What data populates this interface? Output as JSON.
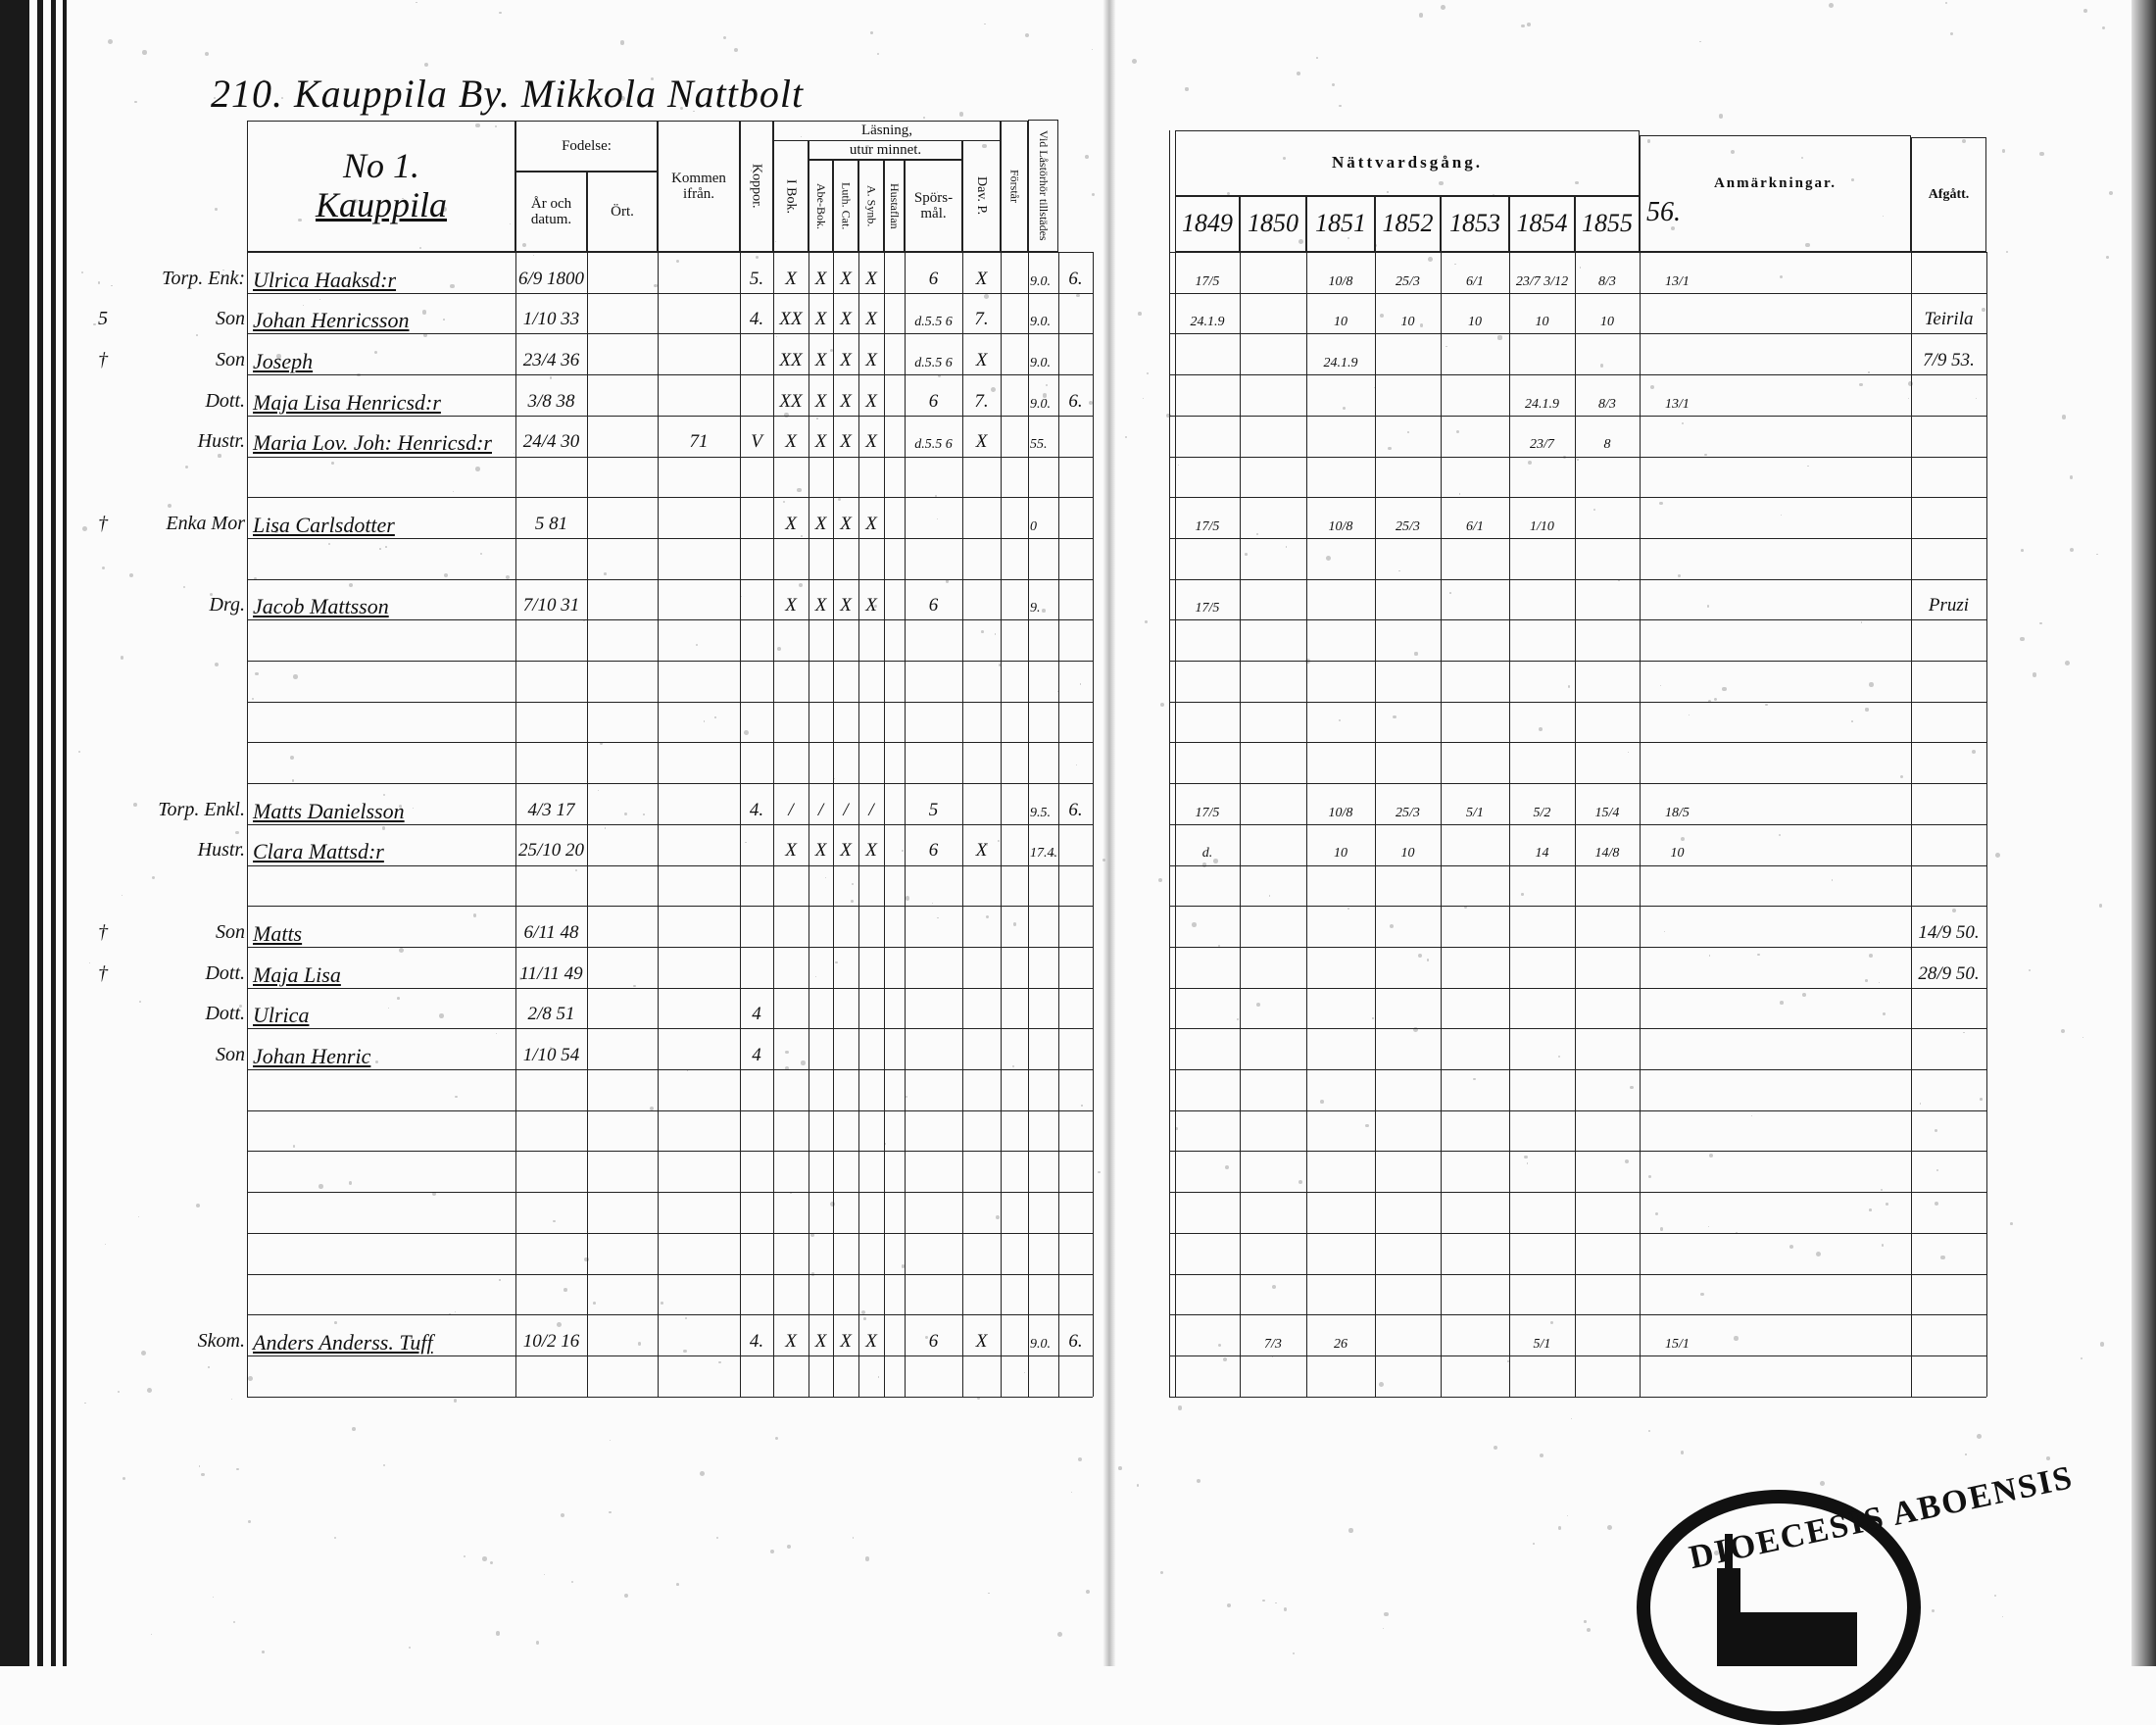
{
  "page": {
    "number": "210.",
    "title": "Kauppila By. Mikkola Nattbolt",
    "household_no": "No 1.",
    "household_name": "Kauppila"
  },
  "left_headers": {
    "fodelse": "Fodelse:",
    "ar_och_datum": "År och datum.",
    "ort": "Ört.",
    "kommen_ifran": "Kommen ifrån.",
    "koppor": "Koppor.",
    "lasning": "Läsning,",
    "utur_minnet": "utur minnet.",
    "i_bok": "I Bok.",
    "abe_bok": "Abe-Bok.",
    "luth_cat": "Luth. Cat.",
    "synb": "A. Synb.",
    "hustaflan": "Hustaflan",
    "sporsmal": "Spörs-mål.",
    "dav_p": "Dav. P.",
    "forstar": "Förstår",
    "vid_lastorhor": "Vid Låstörhör tillstädes"
  },
  "right_headers": {
    "nattvardsgang": "Nättvardsgång.",
    "years": [
      "1849",
      "1850",
      "1851",
      "1852",
      "1853",
      "1854",
      "1855"
    ],
    "anmarkningar": "Anmärkningar.",
    "year_56": "56.",
    "afgatt": "Afgått."
  },
  "rows": [
    {
      "row": 0,
      "margin": "",
      "role": "Torp. Enk:",
      "name": "Ulrica Haaksd:r",
      "birth": "6/9 1800",
      "kommen": "",
      "koppor": "5.",
      "ibok": "X",
      "abe": "X",
      "luth": "X",
      "synb": "X",
      "hust": "",
      "spors": "6",
      "dav": "X",
      "fyr": "",
      "vid": "9.0.",
      "extra": "6.",
      "y1849": "17/5",
      "y1850": "",
      "y1851": "10/8",
      "y1852": "25/3",
      "y1853": "6/1",
      "y1854": "23/7 3/12",
      "y1855": "8/3",
      "y56": "13/1",
      "afgatt": ""
    },
    {
      "row": 1,
      "margin": "5",
      "role": "Son",
      "name": "Johan Henricsson",
      "birth": "1/10 33",
      "kommen": "",
      "koppor": "4.",
      "ibok": "XX",
      "abe": "X",
      "luth": "X",
      "synb": "X",
      "hust": "",
      "spors": "d.5.5 6",
      "dav": "7.",
      "fyr": "",
      "vid": "9.0.",
      "extra": "",
      "y1849": "24.1.9",
      "y1850": "",
      "y1851": "10",
      "y1852": "10",
      "y1853": "10",
      "y1854": "10",
      "y1855": "10",
      "y56": "",
      "afgatt": "Teirila"
    },
    {
      "row": 2,
      "margin": "†",
      "role": "Son",
      "name": "Joseph",
      "birth": "23/4 36",
      "kommen": "",
      "koppor": "",
      "ibok": "XX",
      "abe": "X",
      "luth": "X",
      "synb": "X",
      "hust": "",
      "spors": "d.5.5 6",
      "dav": "X",
      "fyr": "",
      "vid": "9.0.",
      "extra": "",
      "y1849": "",
      "y1850": "",
      "y1851": "24.1.9",
      "y1852": "",
      "y1853": "",
      "y1854": "",
      "y1855": "",
      "y56": "",
      "afgatt": "7/9 53."
    },
    {
      "row": 3,
      "margin": "",
      "role": "Dott.",
      "name": "Maja Lisa Henricsd:r",
      "birth": "3/8 38",
      "kommen": "",
      "koppor": "",
      "ibok": "XX",
      "abe": "X",
      "luth": "X",
      "synb": "X",
      "hust": "",
      "spors": "6",
      "dav": "7.",
      "fyr": "",
      "vid": "9.0.",
      "extra": "6.",
      "y1849": "",
      "y1850": "",
      "y1851": "",
      "y1852": "",
      "y1853": "",
      "y1854": "24.1.9",
      "y1855": "8/3",
      "y56": "13/1",
      "afgatt": ""
    },
    {
      "row": 4,
      "margin": "",
      "role": "Hustr.",
      "name": "Maria Lov. Joh: Henricsd:r",
      "birth": "24/4 30",
      "kommen": "71",
      "koppor": "V",
      "ibok": "X",
      "abe": "X",
      "luth": "X",
      "synb": "X",
      "hust": "",
      "spors": "d.5.5 6",
      "dav": "X",
      "fyr": "",
      "vid": "55.",
      "extra": "",
      "y1849": "",
      "y1850": "",
      "y1851": "",
      "y1852": "",
      "y1853": "",
      "y1854": "23/7",
      "y1855": "8",
      "y56": "",
      "afgatt": ""
    },
    {
      "row": 6,
      "margin": "†",
      "role": "Enka Mor",
      "name": "Lisa Carlsdotter",
      "birth": "5 81",
      "kommen": "",
      "koppor": "",
      "ibok": "X",
      "abe": "X",
      "luth": "X",
      "synb": "X",
      "hust": "",
      "spors": "",
      "dav": "",
      "fyr": "",
      "vid": "0",
      "extra": "",
      "y1849": "17/5",
      "y1850": "",
      "y1851": "10/8",
      "y1852": "25/3",
      "y1853": "6/1",
      "y1854": "1/10",
      "y1855": "",
      "y56": "",
      "afgatt": ""
    },
    {
      "row": 8,
      "margin": "",
      "role": "Drg.",
      "name": "Jacob Mattsson",
      "birth": "7/10 31",
      "kommen": "",
      "koppor": "",
      "ibok": "X",
      "abe": "X",
      "luth": "X",
      "synb": "X",
      "hust": "",
      "spors": "6",
      "dav": "",
      "fyr": "",
      "vid": "9.",
      "extra": "",
      "y1849": "17/5",
      "y1850": "",
      "y1851": "",
      "y1852": "",
      "y1853": "",
      "y1854": "",
      "y1855": "",
      "y56": "",
      "afgatt": "Pruzi"
    },
    {
      "row": 13,
      "margin": "",
      "role": "Torp. Enkl.",
      "name": "Matts Danielsson",
      "birth": "4/3 17",
      "kommen": "",
      "koppor": "4.",
      "ibok": "/",
      "abe": "/",
      "luth": "/",
      "synb": "/",
      "hust": "",
      "spors": "5",
      "dav": "",
      "fyr": "",
      "vid": "9.5.",
      "extra": "6.",
      "y1849": "17/5",
      "y1850": "",
      "y1851": "10/8",
      "y1852": "25/3",
      "y1853": "5/1",
      "y1854": "5/2",
      "y1855": "15/4",
      "y56": "18/5",
      "afgatt": ""
    },
    {
      "row": 14,
      "margin": "",
      "role": "Hustr.",
      "name": "Clara Mattsd:r",
      "birth": "25/10 20",
      "kommen": "",
      "koppor": "",
      "ibok": "X",
      "abe": "X",
      "luth": "X",
      "synb": "X",
      "hust": "",
      "spors": "6",
      "dav": "X",
      "fyr": "",
      "vid": "17.4.",
      "extra": "",
      "y1849": "d.",
      "y1850": "",
      "y1851": "10",
      "y1852": "10",
      "y1853": "",
      "y1854": "14",
      "y1855": "14/8",
      "y56": "10",
      "afgatt": ""
    },
    {
      "row": 16,
      "margin": "†",
      "role": "Son",
      "name": "Matts",
      "birth": "6/11 48",
      "kommen": "",
      "koppor": "",
      "ibok": "",
      "abe": "",
      "luth": "",
      "synb": "",
      "hust": "",
      "spors": "",
      "dav": "",
      "fyr": "",
      "vid": "",
      "extra": "",
      "y1849": "",
      "y1850": "",
      "y1851": "",
      "y1852": "",
      "y1853": "",
      "y1854": "",
      "y1855": "",
      "y56": "",
      "afgatt": "14/9 50."
    },
    {
      "row": 17,
      "margin": "†",
      "role": "Dott.",
      "name": "Maja Lisa",
      "birth": "11/11 49",
      "kommen": "",
      "koppor": "",
      "ibok": "",
      "abe": "",
      "luth": "",
      "synb": "",
      "hust": "",
      "spors": "",
      "dav": "",
      "fyr": "",
      "vid": "",
      "extra": "",
      "y1849": "",
      "y1850": "",
      "y1851": "",
      "y1852": "",
      "y1853": "",
      "y1854": "",
      "y1855": "",
      "y56": "",
      "afgatt": "28/9 50."
    },
    {
      "row": 18,
      "margin": "",
      "role": "Dott.",
      "name": "Ulrica",
      "birth": "2/8 51",
      "kommen": "",
      "koppor": "4",
      "ibok": "",
      "abe": "",
      "luth": "",
      "synb": "",
      "hust": "",
      "spors": "",
      "dav": "",
      "fyr": "",
      "vid": "",
      "extra": "",
      "y1849": "",
      "y1850": "",
      "y1851": "",
      "y1852": "",
      "y1853": "",
      "y1854": "",
      "y1855": "",
      "y56": "",
      "afgatt": ""
    },
    {
      "row": 19,
      "margin": "",
      "role": "Son",
      "name": "Johan Henric",
      "birth": "1/10 54",
      "kommen": "",
      "koppor": "4",
      "ibok": "",
      "abe": "",
      "luth": "",
      "synb": "",
      "hust": "",
      "spors": "",
      "dav": "",
      "fyr": "",
      "vid": "",
      "extra": "",
      "y1849": "",
      "y1850": "",
      "y1851": "",
      "y1852": "",
      "y1853": "",
      "y1854": "",
      "y1855": "",
      "y56": "",
      "afgatt": ""
    },
    {
      "row": 26,
      "margin": "",
      "role": "Skom.",
      "name": "Anders Anderss. Tuff",
      "birth": "10/2 16",
      "kommen": "",
      "koppor": "4.",
      "ibok": "X",
      "abe": "X",
      "luth": "X",
      "synb": "X",
      "hust": "",
      "spors": "6",
      "dav": "X",
      "fyr": "",
      "vid": "9.0.",
      "extra": "6.",
      "y1849": "",
      "y1850": "7/3",
      "y1851": "26",
      "y1852": "",
      "y1853": "",
      "y1854": "5/1",
      "y1855": "",
      "y56": "15/1",
      "afgatt": ""
    }
  ],
  "stamp": {
    "text": "DIOECESIS ABOENSIS"
  },
  "colors": {
    "ink": "#111111",
    "paper": "#fbfbfb"
  }
}
